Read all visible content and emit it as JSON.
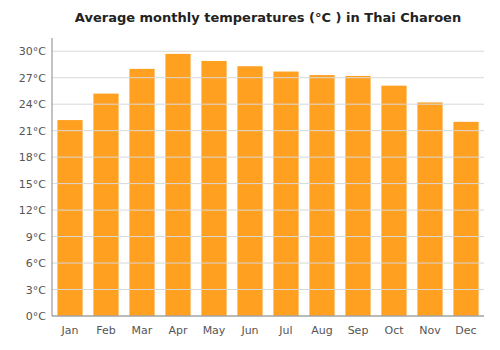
{
  "chart_data": {
    "type": "bar",
    "title": "Average monthly temperatures (°C ) in Thai Charoen",
    "categories": [
      "Jan",
      "Feb",
      "Mar",
      "Apr",
      "May",
      "Jun",
      "Jul",
      "Aug",
      "Sep",
      "Oct",
      "Nov",
      "Dec"
    ],
    "values": [
      22.2,
      25.2,
      28.0,
      29.7,
      28.9,
      28.3,
      27.7,
      27.3,
      27.2,
      26.1,
      24.2,
      22.0
    ],
    "color": "#FFA020",
    "ylim": [
      0,
      31.5
    ],
    "yticks": [
      {
        "value": 0,
        "label": "0°C"
      },
      {
        "value": 3,
        "label": "3°C"
      },
      {
        "value": 6,
        "label": "6°C"
      },
      {
        "value": 9,
        "label": "9°C"
      },
      {
        "value": 12,
        "label": "12°C"
      },
      {
        "value": 15,
        "label": "15°C"
      },
      {
        "value": 18,
        "label": "18°C"
      },
      {
        "value": 21,
        "label": "21°C"
      },
      {
        "value": 24,
        "label": "24°C"
      },
      {
        "value": 27,
        "label": "27°C"
      },
      {
        "value": 30,
        "label": "30°C"
      }
    ],
    "grid": true
  }
}
